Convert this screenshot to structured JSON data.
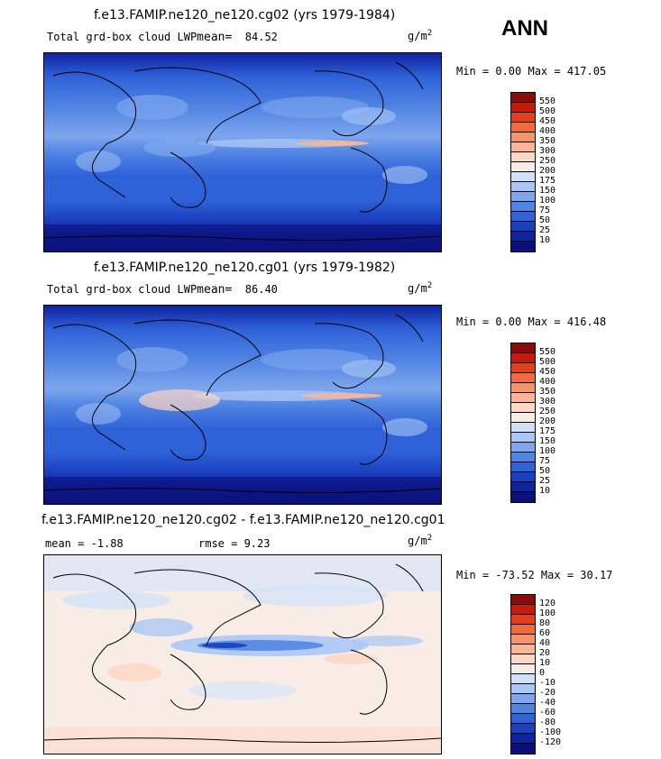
{
  "season": "ANN",
  "panel1": {
    "title": "f.e13.FAMIP.ne120_ne120.cg02 (yrs 1979-1984)",
    "variable": "Total grd-box cloud LWP",
    "mean_label": "mean=",
    "mean_value": "84.52",
    "units_base": "g/m",
    "units_exp": "2",
    "minmax": "Min =    0.00 Max = 417.05"
  },
  "panel2": {
    "title": "f.e13.FAMIP.ne120_ne120.cg01 (yrs 1979-1982)",
    "variable": "Total grd-box cloud LWP",
    "mean_label": "mean=",
    "mean_value": "86.40",
    "units_base": "g/m",
    "units_exp": "2",
    "minmax": "Min =    0.00 Max = 416.48"
  },
  "panel3": {
    "title": "f.e13.FAMIP.ne120_ne120.cg02 - f.e13.FAMIP.ne120_ne120.cg01",
    "mean_text": "mean =   -1.88",
    "rmse_text": "rmse =    9.23",
    "units_base": "g/m",
    "units_exp": "2",
    "minmax": "Min = -73.52 Max =  30.17"
  },
  "legend_main": {
    "labels": [
      "550",
      "500",
      "450",
      "400",
      "350",
      "300",
      "250",
      "200",
      "175",
      "150",
      "100",
      "75",
      "50",
      "25",
      "10"
    ],
    "colors": [
      "#8b0a0a",
      "#c51b0c",
      "#e0401c",
      "#f06a3d",
      "#f8926a",
      "#fbb596",
      "#fdd6c4",
      "#f8ede6",
      "#d2e1fb",
      "#aac6f5",
      "#7ea6ee",
      "#5285e3",
      "#2f62d8",
      "#1a3fbf",
      "#0f22a0",
      "#0a117a"
    ]
  },
  "legend_diff": {
    "labels": [
      "120",
      "100",
      "80",
      "60",
      "40",
      "20",
      "10",
      "0",
      "-10",
      "-20",
      "-40",
      "-60",
      "-80",
      "-100",
      "-120"
    ],
    "colors": [
      "#8b0a0a",
      "#c51b0c",
      "#e0401c",
      "#f06a3d",
      "#f8926a",
      "#fbb596",
      "#fdd6c4",
      "#f8ede6",
      "#d2e1fb",
      "#aac6f5",
      "#7ea6ee",
      "#5285e3",
      "#2f62d8",
      "#1a3fbf",
      "#0f22a0",
      "#0a117a"
    ]
  }
}
